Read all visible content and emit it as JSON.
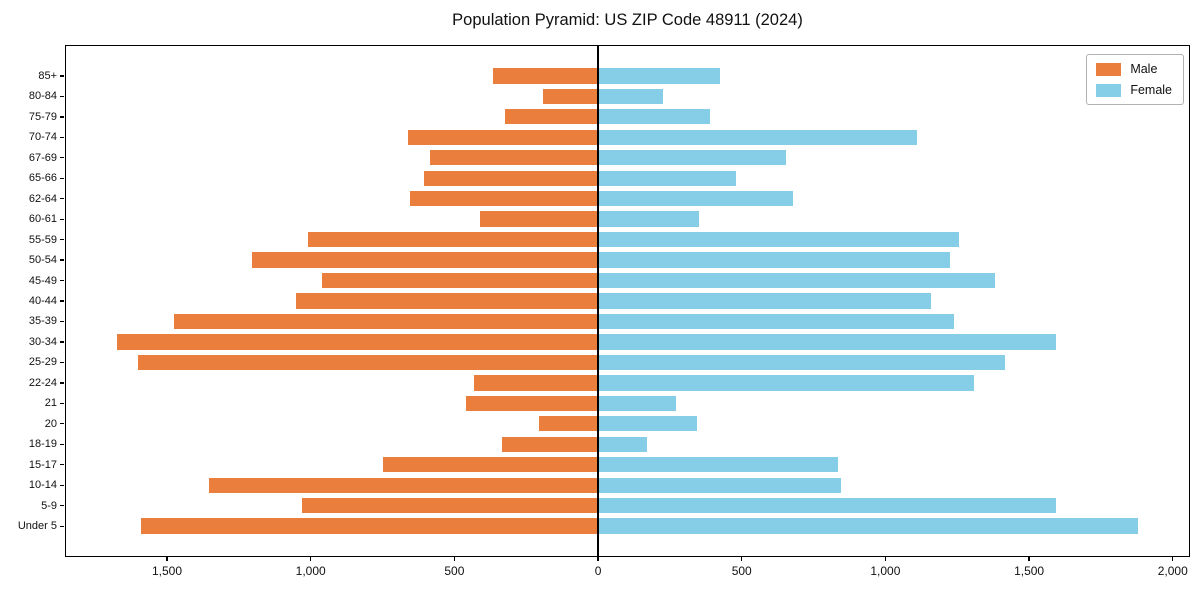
{
  "chart_data": {
    "type": "bar",
    "subtype": "population-pyramid",
    "title": "Population Pyramid: US ZIP Code 48911 (2024)",
    "categories": [
      "85+",
      "80-84",
      "75-79",
      "70-74",
      "67-69",
      "65-66",
      "62-64",
      "60-61",
      "55-59",
      "50-54",
      "45-49",
      "40-44",
      "35-39",
      "30-34",
      "25-29",
      "22-24",
      "21",
      "20",
      "18-19",
      "15-17",
      "10-14",
      "5-9",
      "Under 5"
    ],
    "series": [
      {
        "name": "Male",
        "side": "left",
        "color": "#E97E3D",
        "values": [
          365,
          190,
          325,
          660,
          585,
          605,
          655,
          410,
          1010,
          1205,
          960,
          1050,
          1475,
          1675,
          1600,
          430,
          460,
          205,
          335,
          750,
          1355,
          1030,
          1590
        ]
      },
      {
        "name": "Female",
        "side": "right",
        "color": "#86CEE8",
        "values": [
          425,
          225,
          390,
          1110,
          655,
          480,
          680,
          350,
          1255,
          1225,
          1380,
          1160,
          1240,
          1595,
          1415,
          1310,
          270,
          345,
          170,
          835,
          845,
          1595,
          1880
        ]
      }
    ],
    "x_tick_values": [
      -1500,
      -1000,
      -500,
      0,
      500,
      1000,
      1500,
      2000
    ],
    "x_tick_labels": [
      "1,500",
      "1,000",
      "500",
      "0",
      "500",
      "1,000",
      "1,500",
      "2,000"
    ],
    "xlim": [
      -1855,
      2060
    ],
    "grid": false,
    "legend_position": "upper right",
    "axis_color": "#000000",
    "background_color": "#ffffff"
  }
}
